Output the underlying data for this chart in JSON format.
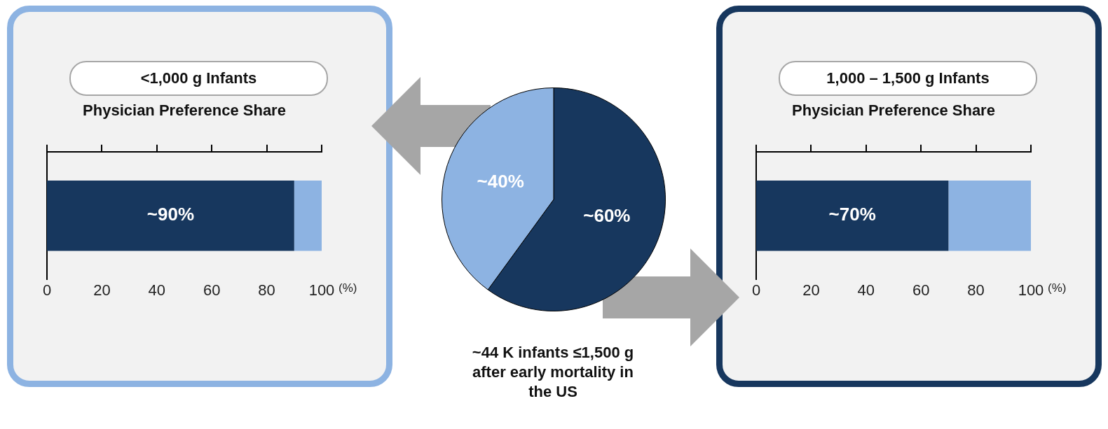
{
  "chart_data": [
    {
      "type": "bar",
      "orientation": "horizontal",
      "stacked": true,
      "title": "<1,000 g Infants",
      "xlabel": "Physician Preference Share",
      "categories": [
        null
      ],
      "series": [
        {
          "color": "#17375e",
          "values": [
            90
          ],
          "value_labels": [
            "~90%"
          ]
        },
        {
          "color": "#8db3e2",
          "values": [
            10
          ]
        }
      ],
      "xlim": [
        0,
        100
      ],
      "xticks": [
        0,
        20,
        40,
        60,
        80,
        100
      ],
      "annotations": [
        "(%)"
      ]
    },
    {
      "type": "pie",
      "categories": [
        null,
        null
      ],
      "values": [
        60,
        40
      ],
      "colors": [
        "#17375e",
        "#8db3e2"
      ],
      "value_labels": [
        "~60%",
        "~40%"
      ],
      "annotations": [
        "~44 K infants ≤1,500 g after early mortality in the US"
      ]
    },
    {
      "type": "bar",
      "orientation": "horizontal",
      "stacked": true,
      "title": "1,000 – 1,500 g Infants",
      "xlabel": "Physician Preference Share",
      "categories": [
        null
      ],
      "series": [
        {
          "color": "#17375e",
          "values": [
            70
          ],
          "value_labels": [
            "~70%"
          ]
        },
        {
          "color": "#8db3e2",
          "values": [
            30
          ]
        }
      ],
      "xlim": [
        0,
        100
      ],
      "xticks": [
        0,
        20,
        40,
        60,
        80,
        100
      ],
      "annotations": [
        "(%)"
      ]
    }
  ]
}
